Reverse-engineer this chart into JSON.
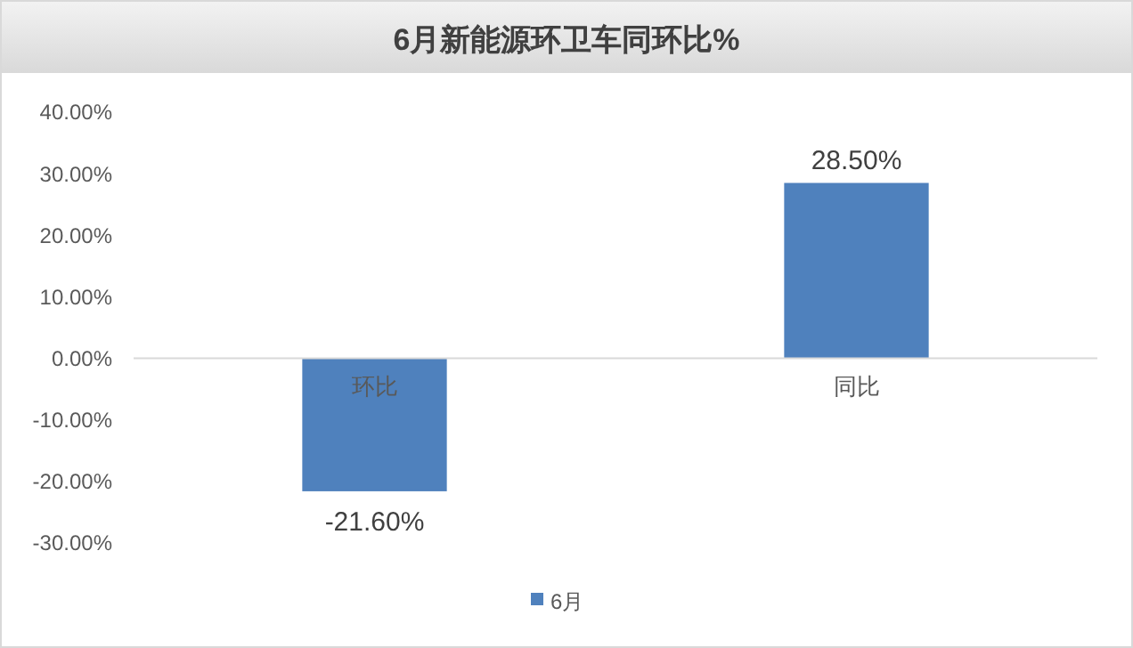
{
  "chart_data": {
    "type": "bar",
    "title": "6月新能源环卫车同环比%",
    "categories": [
      "环比",
      "同比"
    ],
    "series": [
      {
        "name": "6月",
        "color": "#4f81bd",
        "values": [
          -21.6,
          28.5
        ],
        "value_labels": [
          "-21.60%",
          "28.50%"
        ]
      }
    ],
    "ylim": [
      -30,
      40
    ],
    "yticks": [
      {
        "value": -30,
        "label": "-30.00%"
      },
      {
        "value": -20,
        "label": "-20.00%"
      },
      {
        "value": -10,
        "label": "-10.00%"
      },
      {
        "value": 0,
        "label": "0.00%"
      },
      {
        "value": 10,
        "label": "10.00%"
      },
      {
        "value": 20,
        "label": "20.00%"
      },
      {
        "value": 30,
        "label": "30.00%"
      },
      {
        "value": 40,
        "label": "40.00%"
      }
    ],
    "grid": false,
    "legend": "bottom"
  }
}
